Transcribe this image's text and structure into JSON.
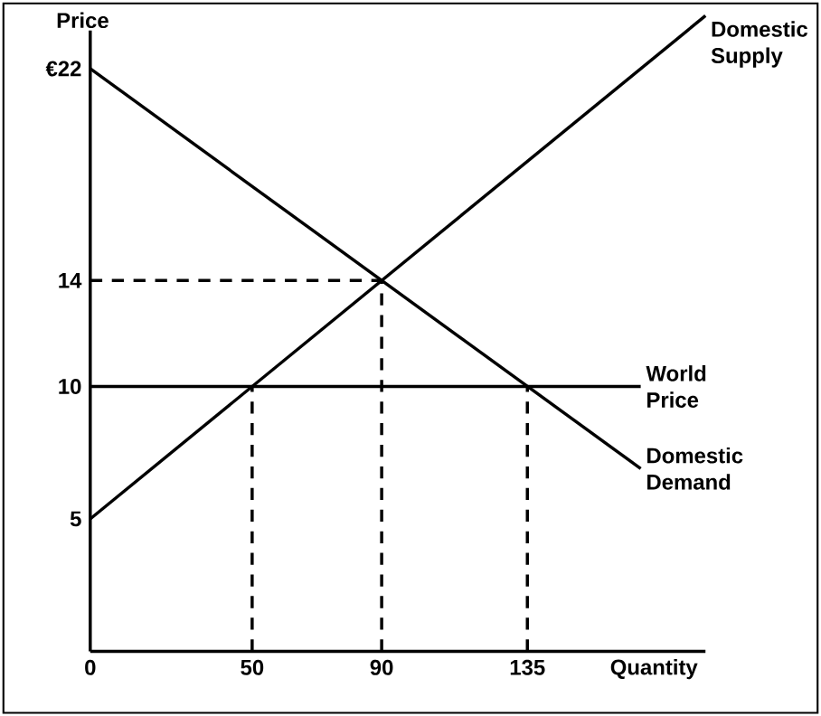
{
  "chart_data": {
    "type": "line",
    "xlabel": "Quantity",
    "ylabel": "Price",
    "xlim": [
      0,
      190
    ],
    "ylim": [
      0,
      24
    ],
    "xticks": [
      0,
      50,
      90,
      135
    ],
    "yticks": [
      5,
      10,
      14,
      {
        "value": 22,
        "label": "€22"
      }
    ],
    "grid": false,
    "marker": "none",
    "series": [
      {
        "name": "Domestic Supply",
        "color": "#000000",
        "line_style": "solid",
        "x": [
          0,
          190
        ],
        "values": [
          5,
          24
        ]
      },
      {
        "name": "World Price",
        "color": "#000000",
        "line_style": "solid",
        "x": [
          0,
          170
        ],
        "values": [
          10,
          10
        ]
      },
      {
        "name": "Domestic Demand",
        "color": "#000000",
        "line_style": "solid",
        "x": [
          0,
          170
        ],
        "values": [
          22,
          6.9
        ]
      },
      {
        "color": "#000000",
        "line_style": "dashed",
        "x": [
          0,
          90
        ],
        "values": [
          14,
          14
        ]
      },
      {
        "color": "#000000",
        "line_style": "dashed",
        "x": [
          90,
          90
        ],
        "values": [
          0,
          14
        ]
      },
      {
        "color": "#000000",
        "line_style": "dashed",
        "x": [
          50,
          50
        ],
        "values": [
          0,
          10
        ]
      },
      {
        "color": "#000000",
        "line_style": "dashed",
        "x": [
          135,
          135
        ],
        "values": [
          0,
          10
        ]
      }
    ]
  }
}
